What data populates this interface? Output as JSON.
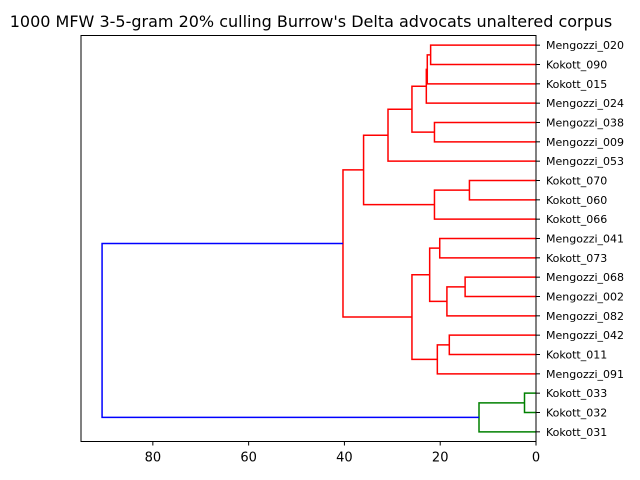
{
  "chart_data": {
    "type": "dendrogram",
    "title": "1000 MFW 3-5-gram 20% culling Burrow's Delta advocats unaltered corpus",
    "xlabel": "",
    "ylabel": "",
    "orientation": "left",
    "xlim": [
      95,
      0
    ],
    "xticks": [
      80,
      60,
      40,
      20,
      0
    ],
    "tick_labels": [
      "80",
      "60",
      "40",
      "20",
      "0"
    ],
    "grid": false,
    "leaves": [
      "Mengozzi_020",
      "Kokott_090",
      "Kokott_015",
      "Mengozzi_024",
      "Mengozzi_038",
      "Mengozzi_009",
      "Mengozzi_053",
      "Kokott_070",
      "Kokott_060",
      "Kokott_066",
      "Mengozzi_041",
      "Kokott_073",
      "Mengozzi_068",
      "Mengozzi_002",
      "Mengozzi_082",
      "Mengozzi_042",
      "Kokott_011",
      "Mengozzi_091",
      "Kokott_033",
      "Kokott_032",
      "Kokott_031"
    ],
    "colors": {
      "cluster_a": "#ff0000",
      "cluster_b": "#008000",
      "root": "#0000ff"
    },
    "merges": [
      {
        "a": "L0",
        "b": "L1",
        "height": 22.0,
        "color": "cluster_a"
      },
      {
        "a": "M1",
        "b": "L2",
        "height": 22.7,
        "color": "cluster_a"
      },
      {
        "a": "M2",
        "b": "L3",
        "height": 22.9,
        "color": "cluster_a"
      },
      {
        "a": "L4",
        "b": "L5",
        "height": 21.2,
        "color": "cluster_a"
      },
      {
        "a": "M3",
        "b": "M4",
        "height": 25.9,
        "color": "cluster_a"
      },
      {
        "a": "M5",
        "b": "L6",
        "height": 30.9,
        "color": "cluster_a"
      },
      {
        "a": "L7",
        "b": "L8",
        "height": 13.9,
        "color": "cluster_a"
      },
      {
        "a": "M7",
        "b": "L9",
        "height": 21.2,
        "color": "cluster_a"
      },
      {
        "a": "M6",
        "b": "M8",
        "height": 36.0,
        "color": "cluster_a"
      },
      {
        "a": "L10",
        "b": "L11",
        "height": 20.1,
        "color": "cluster_a"
      },
      {
        "a": "L12",
        "b": "L13",
        "height": 14.8,
        "color": "cluster_a"
      },
      {
        "a": "M11",
        "b": "L14",
        "height": 18.6,
        "color": "cluster_a"
      },
      {
        "a": "M10",
        "b": "M12",
        "height": 22.2,
        "color": "cluster_a"
      },
      {
        "a": "L15",
        "b": "L16",
        "height": 18.1,
        "color": "cluster_a"
      },
      {
        "a": "M14",
        "b": "L17",
        "height": 20.6,
        "color": "cluster_a"
      },
      {
        "a": "M13",
        "b": "M15",
        "height": 25.9,
        "color": "cluster_a"
      },
      {
        "a": "M9",
        "b": "M16",
        "height": 40.3,
        "color": "cluster_a"
      },
      {
        "a": "L18",
        "b": "L19",
        "height": 2.4,
        "color": "cluster_b"
      },
      {
        "a": "M18",
        "b": "L20",
        "height": 11.9,
        "color": "cluster_b"
      },
      {
        "a": "M17",
        "b": "M19",
        "height": 90.6,
        "color": "root"
      }
    ]
  }
}
